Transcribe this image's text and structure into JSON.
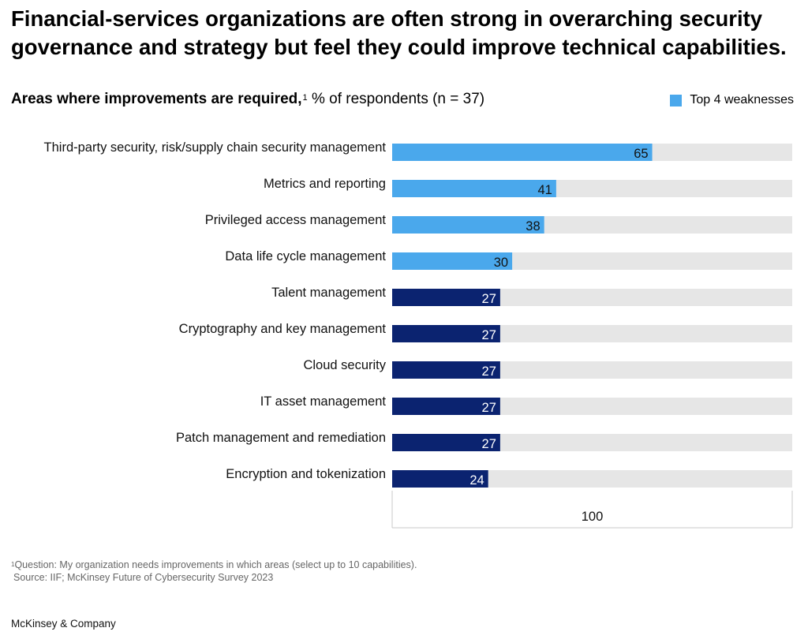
{
  "title": "Financial-services organizations are often strong in overarching security governance and strategy but feel they could improve technical capabilities.",
  "subtitle": {
    "bold": "Areas where improvements are required,",
    "note_mark": "1",
    "rest": " % of respondents (n = 37)"
  },
  "legend": {
    "label": "Top 4 weaknesses",
    "color": "#4aa8ec"
  },
  "colors": {
    "highlight": "#4aa8ec",
    "base": "#0b2370",
    "track": "#e6e6e6"
  },
  "chart_data": {
    "type": "bar",
    "orientation": "horizontal",
    "categories": [
      "Third-party security, risk/supply chain security management",
      "Metrics and reporting",
      "Privileged access management",
      "Data life cycle management",
      "Talent management",
      "Cryptography and key management",
      "Cloud security",
      "IT asset management",
      "Patch management and remediation",
      "Encryption and tokenization"
    ],
    "values": [
      65,
      41,
      38,
      30,
      27,
      27,
      27,
      27,
      27,
      24
    ],
    "highlighted": [
      true,
      true,
      true,
      true,
      false,
      false,
      false,
      false,
      false,
      false
    ],
    "xlim": [
      0,
      100
    ],
    "axis_label": "100",
    "grid": false,
    "legend_position": "top-right"
  },
  "footnote": {
    "mark": "1",
    "question": "Question: My organization needs improvements in which areas (select up to 10 capabilities).",
    "source": "Source: IIF; McKinsey Future of Cybersecurity Survey 2023"
  },
  "brand": "McKinsey & Company"
}
